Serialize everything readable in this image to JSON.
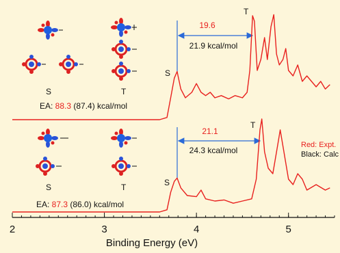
{
  "chart_data": {
    "type": "line",
    "xlabel": "Binding Energy (eV)",
    "xlim": [
      2,
      5.5
    ],
    "xticks": [
      2,
      3,
      4,
      5
    ],
    "ylim": [
      0,
      1
    ],
    "series": [
      {
        "color": "#e8201e",
        "x": [
          2.0,
          3.6,
          3.68,
          3.72,
          3.76,
          3.79,
          3.83,
          3.88,
          3.95,
          4.0,
          4.05,
          4.1,
          4.15,
          4.2,
          4.27,
          4.35,
          4.42,
          4.5,
          4.55,
          4.58,
          4.61,
          4.63,
          4.66,
          4.7,
          4.74,
          4.77,
          4.81,
          4.84,
          4.87,
          4.9,
          4.94,
          4.97,
          5.0,
          5.05,
          5.1,
          5.15,
          5.2,
          5.3,
          5.35,
          5.4,
          5.45
        ],
        "values": [
          0,
          0,
          0.02,
          0.2,
          0.38,
          0.44,
          0.28,
          0.2,
          0.25,
          0.33,
          0.25,
          0.22,
          0.25,
          0.2,
          0.22,
          0.19,
          0.22,
          0.2,
          0.25,
          0.45,
          0.95,
          0.9,
          0.45,
          0.55,
          0.75,
          0.55,
          0.85,
          0.96,
          0.6,
          0.5,
          0.55,
          0.65,
          0.45,
          0.4,
          0.5,
          0.35,
          0.4,
          0.3,
          0.35,
          0.28,
          0.32
        ]
      },
      {
        "color": "#e8201e",
        "x": [
          2.0,
          3.6,
          3.68,
          3.72,
          3.76,
          3.79,
          3.83,
          3.9,
          4.0,
          4.05,
          4.1,
          4.2,
          4.3,
          4.4,
          4.5,
          4.6,
          4.65,
          4.69,
          4.71,
          4.74,
          4.78,
          4.83,
          4.88,
          4.91,
          4.95,
          5.0,
          5.05,
          5.1,
          5.15,
          5.2,
          5.3,
          5.4,
          5.45
        ],
        "values": [
          0,
          0,
          0.02,
          0.18,
          0.28,
          0.31,
          0.22,
          0.15,
          0.14,
          0.2,
          0.12,
          0.1,
          0.11,
          0.08,
          0.1,
          0.12,
          0.3,
          0.75,
          0.85,
          0.55,
          0.4,
          0.35,
          0.6,
          0.75,
          0.55,
          0.3,
          0.25,
          0.35,
          0.3,
          0.2,
          0.25,
          0.2,
          0.22
        ]
      }
    ],
    "annotations": {
      "top": {
        "S": "S",
        "T": "T",
        "gap_expt": "19.6",
        "gap_calc": "21.9 kcal/mol",
        "orbital_S": "S",
        "orbital_T": "T",
        "ea_label": "EA:",
        "ea_expt": "88.3",
        "ea_calc": "(87.4) kcal/mol"
      },
      "bottom": {
        "S": "S",
        "T": "T",
        "gap_expt": "21.1",
        "gap_calc": "24.3 kcal/mol",
        "orbital_S": "S",
        "orbital_T": "T",
        "ea_label": "EA:",
        "ea_expt": "87.3",
        "ea_calc": "(86.0) kcal/mol"
      },
      "legend_expt": "Red: Expt.",
      "legend_calc": "Black: Calc"
    }
  }
}
